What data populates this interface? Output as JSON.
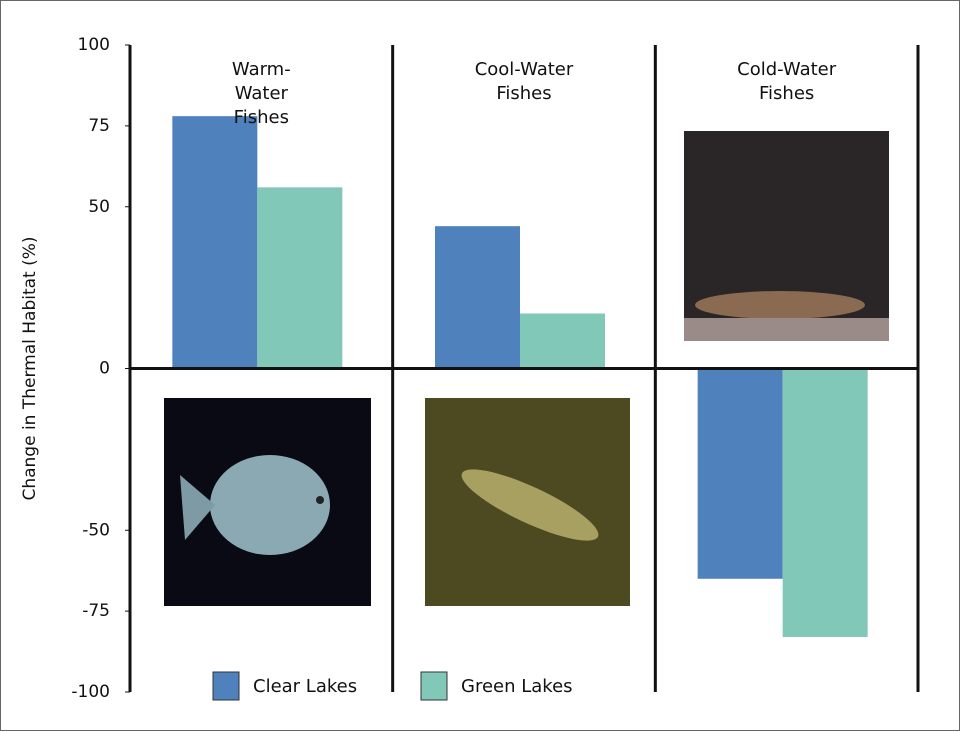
{
  "chart_data": {
    "type": "bar",
    "y_label": "Change in Thermal Habitat (%)",
    "categories": [
      "Warm-Water Fishes",
      "Cool-Water Fishes",
      "Cold-Water Fishes"
    ],
    "series": [
      {
        "name": "Clear Lakes",
        "color": "#4f81bd",
        "values": [
          78,
          44,
          -65
        ]
      },
      {
        "name": "Green Lakes",
        "color": "#82c8b8",
        "values": [
          56,
          17,
          -83
        ]
      }
    ],
    "ylim": [
      -100,
      100
    ],
    "yticks": [
      100,
      75,
      50,
      0,
      -50,
      -75,
      -100
    ]
  }
}
